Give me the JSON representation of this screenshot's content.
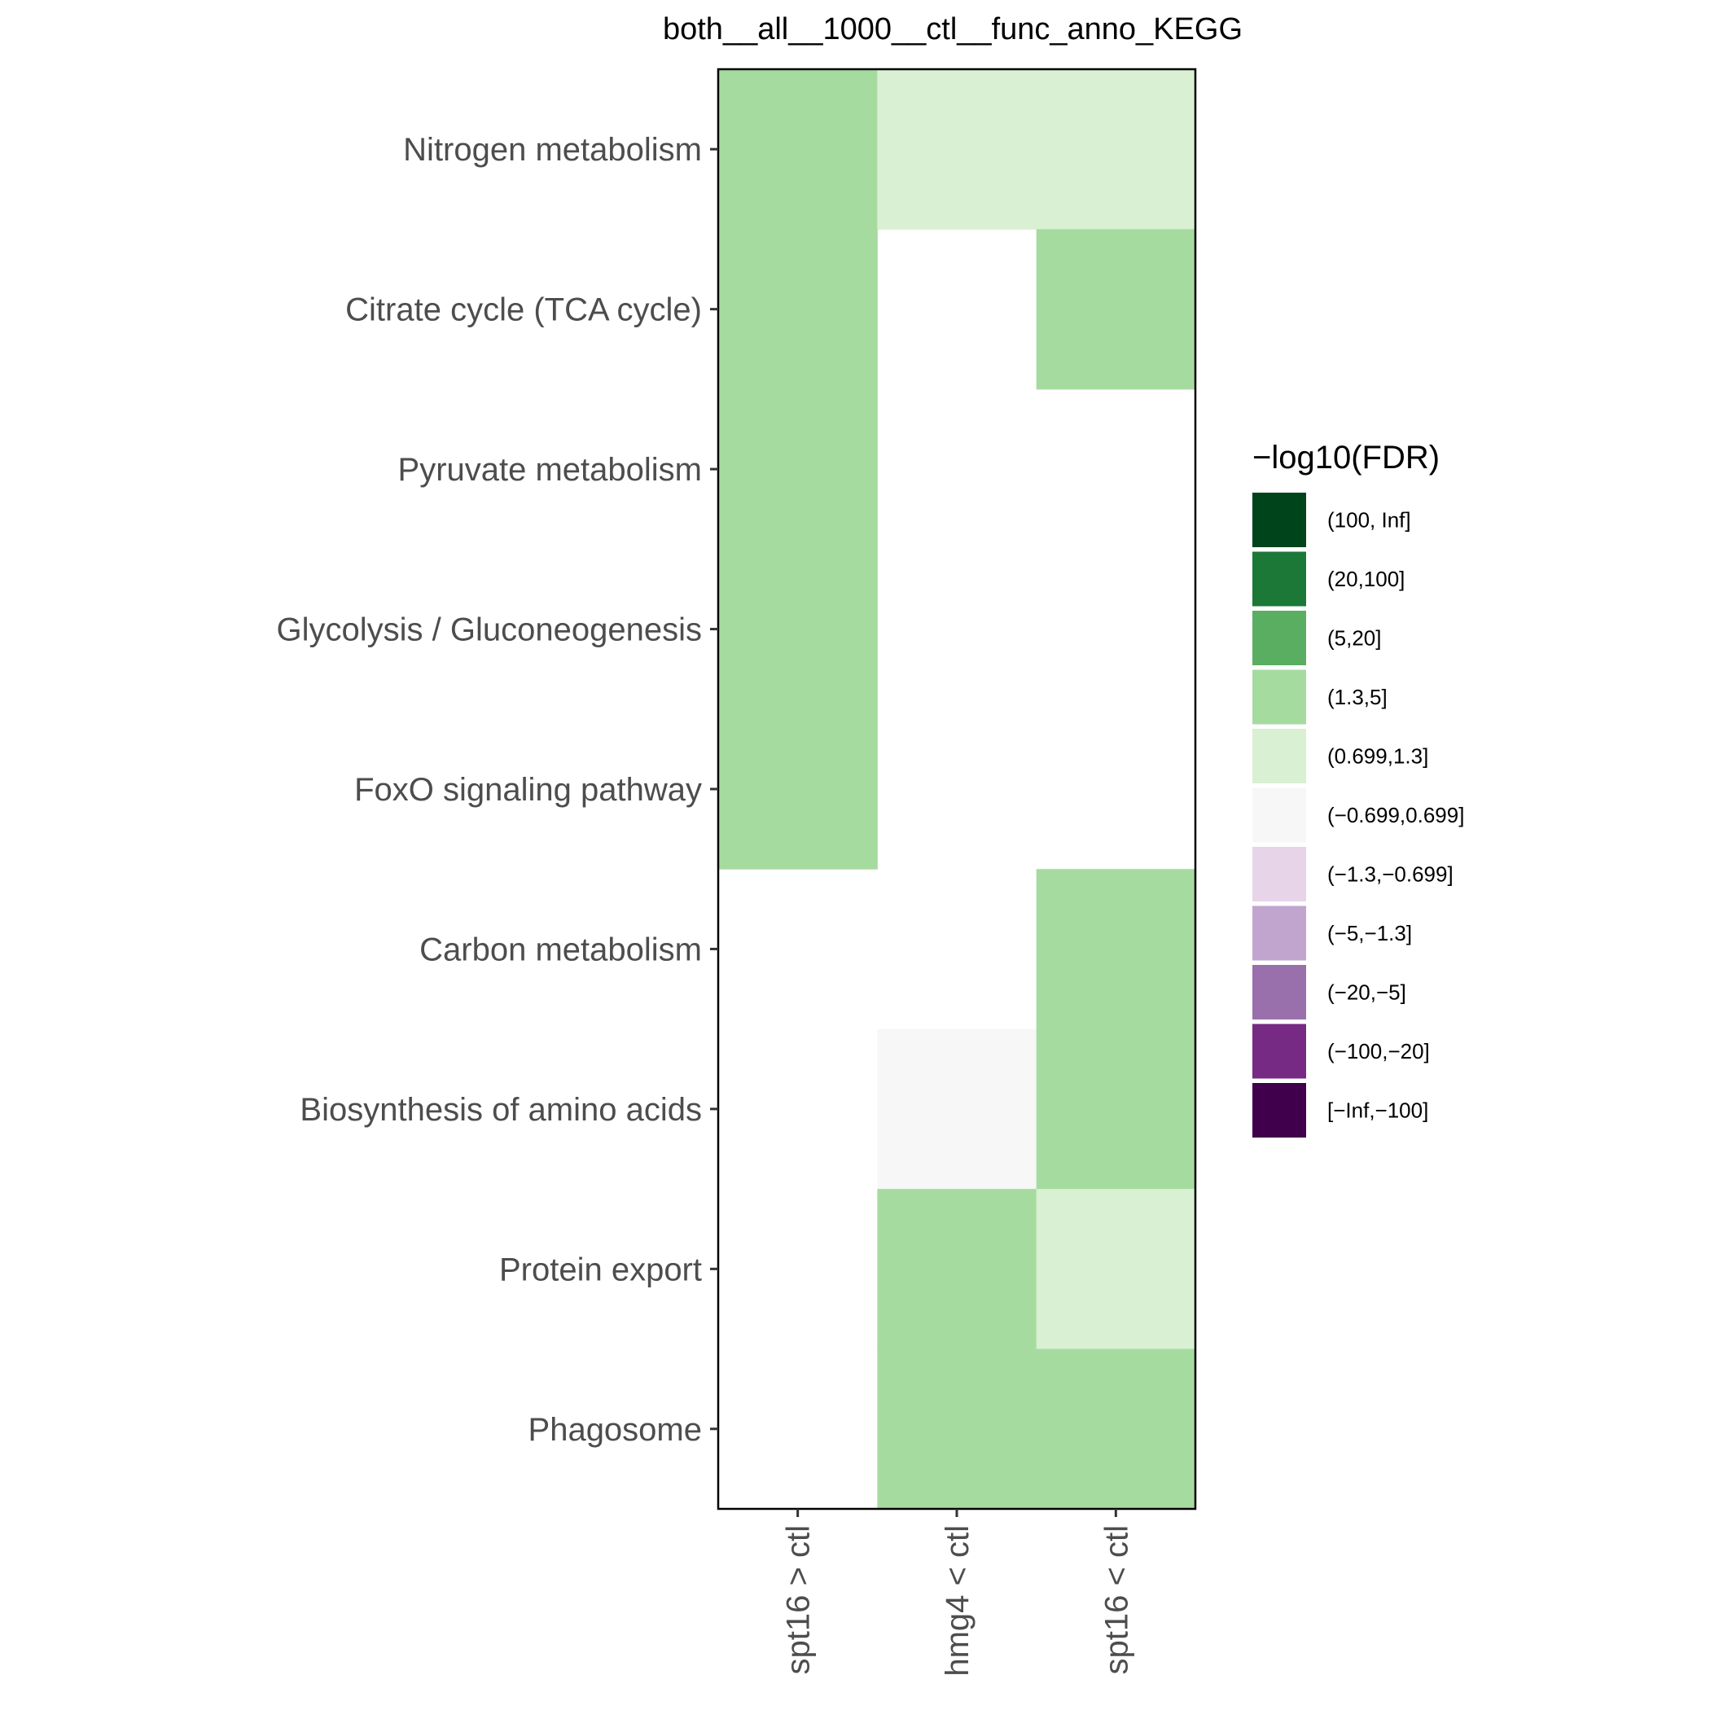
{
  "chart_data": {
    "type": "heatmap",
    "title": "both__all__1000__ctl__func_anno_KEGG",
    "x_categories": [
      "spt16 > ctl",
      "hmg4 < ctl",
      "spt16 < ctl"
    ],
    "y_categories": [
      "Nitrogen metabolism",
      "Citrate cycle (TCA cycle)",
      "Pyruvate metabolism",
      "Glycolysis / Gluconeogenesis",
      "FoxO signaling pathway",
      "Carbon metabolism",
      "Biosynthesis of amino acids",
      "Protein export",
      "Phagosome"
    ],
    "cells": [
      [
        "(1.3,5]",
        "(0.699,1.3]",
        "(0.699,1.3]"
      ],
      [
        "(1.3,5]",
        null,
        "(1.3,5]"
      ],
      [
        "(1.3,5]",
        null,
        null
      ],
      [
        "(1.3,5]",
        null,
        null
      ],
      [
        "(1.3,5]",
        null,
        null
      ],
      [
        null,
        null,
        "(1.3,5]"
      ],
      [
        null,
        "(−0.699,0.699]",
        "(1.3,5]"
      ],
      [
        null,
        "(1.3,5]",
        "(0.699,1.3]"
      ],
      [
        null,
        "(1.3,5]",
        "(1.3,5]"
      ]
    ],
    "legend": {
      "title": "−log10(FDR)",
      "position": "right",
      "items": [
        {
          "label": "(100, Inf]",
          "color": "#00441b"
        },
        {
          "label": "(20,100]",
          "color": "#1b7837"
        },
        {
          "label": "(5,20]",
          "color": "#5aae61"
        },
        {
          "label": "(1.3,5]",
          "color": "#a6dba0"
        },
        {
          "label": "(0.699,1.3]",
          "color": "#d9f0d3"
        },
        {
          "label": "(−0.699,0.699]",
          "color": "#f7f7f7"
        },
        {
          "label": "(−1.3,−0.699]",
          "color": "#e7d4e8"
        },
        {
          "label": "(−5,−1.3]",
          "color": "#c2a5cf"
        },
        {
          "label": "(−20,−5]",
          "color": "#9970ab"
        },
        {
          "label": "(−100,−20]",
          "color": "#762a83"
        },
        {
          "label": "[−Inf,−100]",
          "color": "#40004b"
        }
      ]
    },
    "grid": false,
    "panel_border": true
  }
}
